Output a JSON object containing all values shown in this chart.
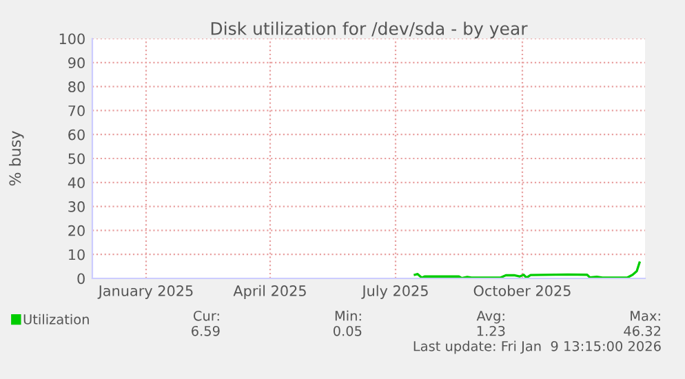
{
  "chart_data": {
    "type": "line",
    "title": "Disk utilization for /dev/sda - by year",
    "ylabel": "% busy",
    "series": [
      {
        "name": "Utilization",
        "color": "#00cc00",
        "x": [
          "2025-07-30",
          "2025-08-01",
          "2025-08-04",
          "2025-08-06",
          "2025-08-31",
          "2025-09-02",
          "2025-09-06",
          "2025-09-09",
          "2025-09-30",
          "2025-10-04",
          "2025-10-10",
          "2025-10-14",
          "2025-10-17",
          "2025-10-19",
          "2025-10-22",
          "2025-11-18",
          "2025-12-02",
          "2025-12-04",
          "2025-12-09",
          "2025-12-13",
          "2025-12-31",
          "2026-01-04",
          "2026-01-07",
          "2026-01-09"
        ],
        "values": [
          1.5,
          1.8,
          0.3,
          0.8,
          0.8,
          0.1,
          0.6,
          0.3,
          0.3,
          1.3,
          1.3,
          0.8,
          1.5,
          0.3,
          1.4,
          1.6,
          1.5,
          0.4,
          0.7,
          0.3,
          0.3,
          1.5,
          3.0,
          6.6
        ]
      }
    ],
    "xlim": [
      "2024-12-08",
      "2026-01-13"
    ],
    "xticks": [
      {
        "value": "2025-01-16",
        "label": "January 2025"
      },
      {
        "value": "2025-04-16",
        "label": "April 2025"
      },
      {
        "value": "2025-07-16",
        "label": "July 2025"
      },
      {
        "value": "2025-10-16",
        "label": "October 2025"
      }
    ],
    "ylim": [
      0,
      100
    ],
    "yticks": [
      0,
      10,
      20,
      30,
      40,
      50,
      60,
      70,
      80,
      90,
      100
    ],
    "grid": true,
    "legend": "bottom left",
    "annotations": [
      "Cur:",
      "Min:",
      "Avg:",
      "Max:",
      "6.59",
      "0.05",
      "1.23",
      "46.32",
      "Last update: Fri Jan  9 13:15:00 2026"
    ]
  }
}
